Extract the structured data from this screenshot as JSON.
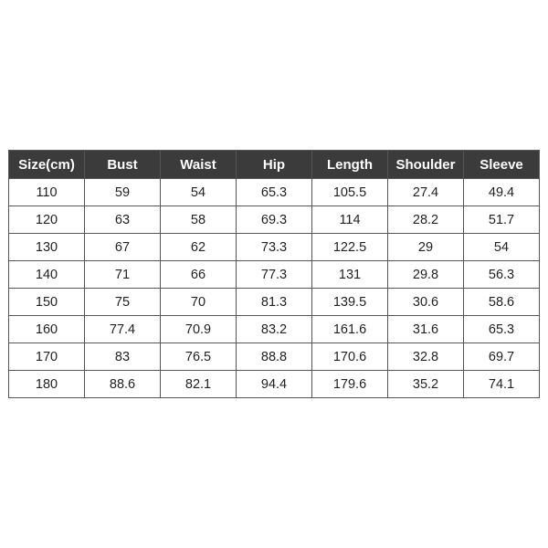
{
  "table": {
    "headers": [
      "Size(cm)",
      "Bust",
      "Waist",
      "Hip",
      "Length",
      "Shoulder",
      "Sleeve"
    ],
    "rows": [
      [
        "110",
        "59",
        "54",
        "65.3",
        "105.5",
        "27.4",
        "49.4"
      ],
      [
        "120",
        "63",
        "58",
        "69.3",
        "114",
        "28.2",
        "51.7"
      ],
      [
        "130",
        "67",
        "62",
        "73.3",
        "122.5",
        "29",
        "54"
      ],
      [
        "140",
        "71",
        "66",
        "77.3",
        "131",
        "29.8",
        "56.3"
      ],
      [
        "150",
        "75",
        "70",
        "81.3",
        "139.5",
        "30.6",
        "58.6"
      ],
      [
        "160",
        "77.4",
        "70.9",
        "83.2",
        "161.6",
        "31.6",
        "65.3"
      ],
      [
        "170",
        "83",
        "76.5",
        "88.8",
        "170.6",
        "32.8",
        "69.7"
      ],
      [
        "180",
        "88.6",
        "82.1",
        "94.4",
        "179.6",
        "35.2",
        "74.1"
      ]
    ]
  }
}
